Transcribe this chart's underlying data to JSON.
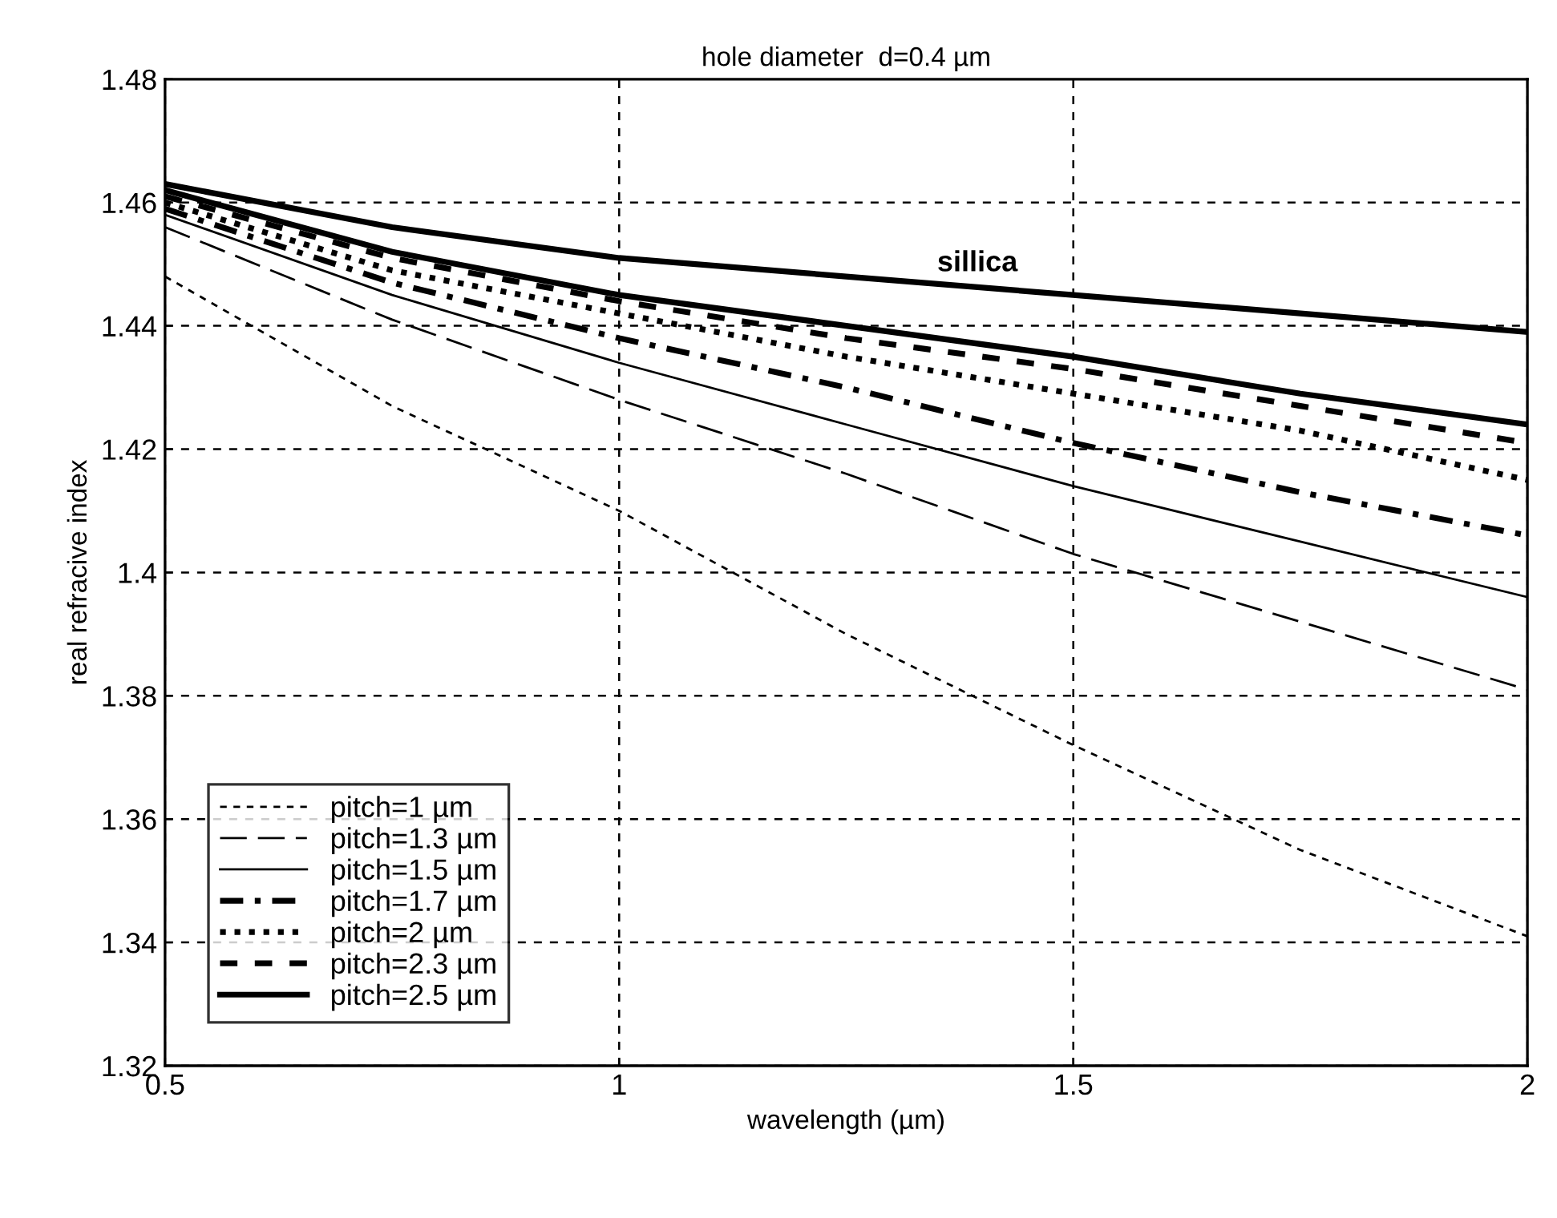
{
  "chart_data": {
    "type": "line",
    "title": "hole diameter  d=0.4 µm",
    "xlabel": "wavelength (µm)",
    "ylabel": "real refracive index",
    "x": [
      0.5,
      0.75,
      1,
      1.25,
      1.5,
      1.75,
      2
    ],
    "series": [
      {
        "color": "#000000",
        "line_style": "solid",
        "values": [
          1.463,
          1.456,
          1.451,
          1.448,
          1.445,
          1.442,
          1.439
        ]
      },
      {
        "name": "pitch=1 µm",
        "color": "#000000",
        "line_style": "dashed",
        "values": [
          1.448,
          1.427,
          1.41,
          1.39,
          1.372,
          1.355,
          1.341
        ]
      },
      {
        "name": "pitch=1.3 µm",
        "color": "#000000",
        "line_style": "longdash",
        "values": [
          1.456,
          1.441,
          1.428,
          1.416,
          1.403,
          1.392,
          1.381
        ]
      },
      {
        "name": "pitch=1.5 µm",
        "color": "#000000",
        "line_style": "solid",
        "values": [
          1.458,
          1.445,
          1.434,
          1.424,
          1.414,
          1.405,
          1.396
        ]
      },
      {
        "name": "pitch=1.7 µm",
        "color": "#000000",
        "line_style": "dashdot",
        "values": [
          1.459,
          1.447,
          1.438,
          1.43,
          1.421,
          1.413,
          1.406
        ]
      },
      {
        "name": "pitch=2 µm",
        "color": "#000000",
        "line_style": "dotted",
        "values": [
          1.46,
          1.449,
          1.442,
          1.435,
          1.429,
          1.423,
          1.415
        ]
      },
      {
        "name": "pitch=2.3 µm",
        "color": "#000000",
        "line_style": "dashed",
        "values": [
          1.461,
          1.451,
          1.444,
          1.438,
          1.433,
          1.427,
          1.421
        ]
      },
      {
        "name": "pitch=2.5 µm",
        "color": "#000000",
        "line_style": "solid",
        "values": [
          1.462,
          1.452,
          1.445,
          1.44,
          1.435,
          1.429,
          1.424
        ]
      }
    ],
    "annotations": [
      {
        "text": "sillica",
        "x": 1.5,
        "y": 1.445
      }
    ],
    "xlim": [
      0.5,
      2
    ],
    "xticks": [
      0.5,
      1,
      1.5,
      2
    ],
    "ylim": [
      1.32,
      1.48
    ],
    "yticks": [
      1.32,
      1.34,
      1.36,
      1.38,
      1.4,
      1.42,
      1.44,
      1.46,
      1.48
    ],
    "grid": true,
    "legend": "bottom left"
  }
}
